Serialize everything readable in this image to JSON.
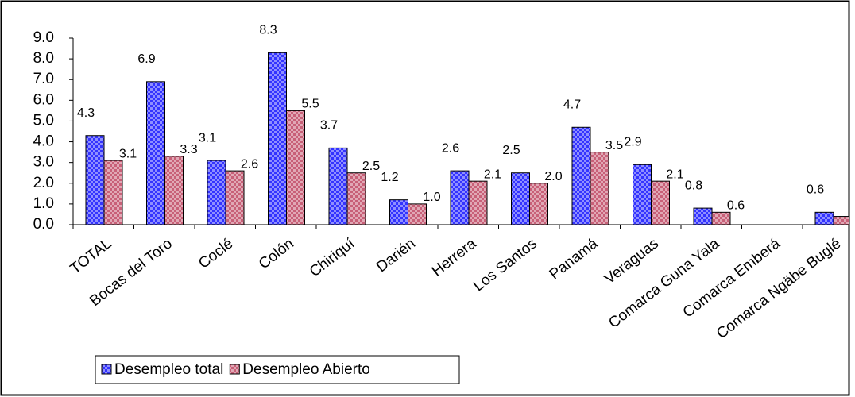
{
  "chart_data": {
    "type": "bar",
    "categories": [
      "TOTAL",
      "Bocas del Toro",
      "Coclé",
      "Colón",
      "Chiriquí",
      "Darién",
      "Herrera",
      "Los Santos",
      "Panamá",
      "Veraguas",
      "Comarca Guna Yala",
      "Comarca Emberá",
      "Comarca Ngäbe Buglé"
    ],
    "series": [
      {
        "name": "Desempleo total",
        "color": "#3333ff",
        "values": [
          4.3,
          6.9,
          3.1,
          8.3,
          3.7,
          1.2,
          2.6,
          2.5,
          4.7,
          2.9,
          0.8,
          null,
          0.6
        ],
        "value_labels": [
          "4.3",
          "6.9",
          "3.1",
          "8.3",
          "3.7",
          "1.2",
          "2.6",
          "2.5",
          "4.7",
          "2.9",
          "0.8",
          null,
          "0.6"
        ]
      },
      {
        "name": "Desempleo Abierto",
        "color": "#c86078",
        "values": [
          3.1,
          3.3,
          2.6,
          5.5,
          2.5,
          1.0,
          2.1,
          2.0,
          3.5,
          2.1,
          0.6,
          null,
          0.4
        ],
        "value_labels": [
          "3.1",
          "3.3",
          "2.6",
          "5.5",
          "2.5",
          "1.0",
          "2.1",
          "2.0",
          "3.5",
          "2.1",
          "0.6",
          null,
          "0.4"
        ]
      }
    ],
    "ylim": [
      0,
      9
    ],
    "yticks": [
      {
        "value": 0,
        "label": "0.0"
      },
      {
        "value": 1,
        "label": "1.0"
      },
      {
        "value": 2,
        "label": "2.0"
      },
      {
        "value": 3,
        "label": "3.0"
      },
      {
        "value": 4,
        "label": "4.0"
      },
      {
        "value": 5,
        "label": "5.0"
      },
      {
        "value": 6,
        "label": "6.0"
      },
      {
        "value": 7,
        "label": "7.0"
      },
      {
        "value": 8,
        "label": "8.0"
      },
      {
        "value": 9,
        "label": "9.0"
      }
    ],
    "grid": false,
    "legend": "bottom-left"
  }
}
